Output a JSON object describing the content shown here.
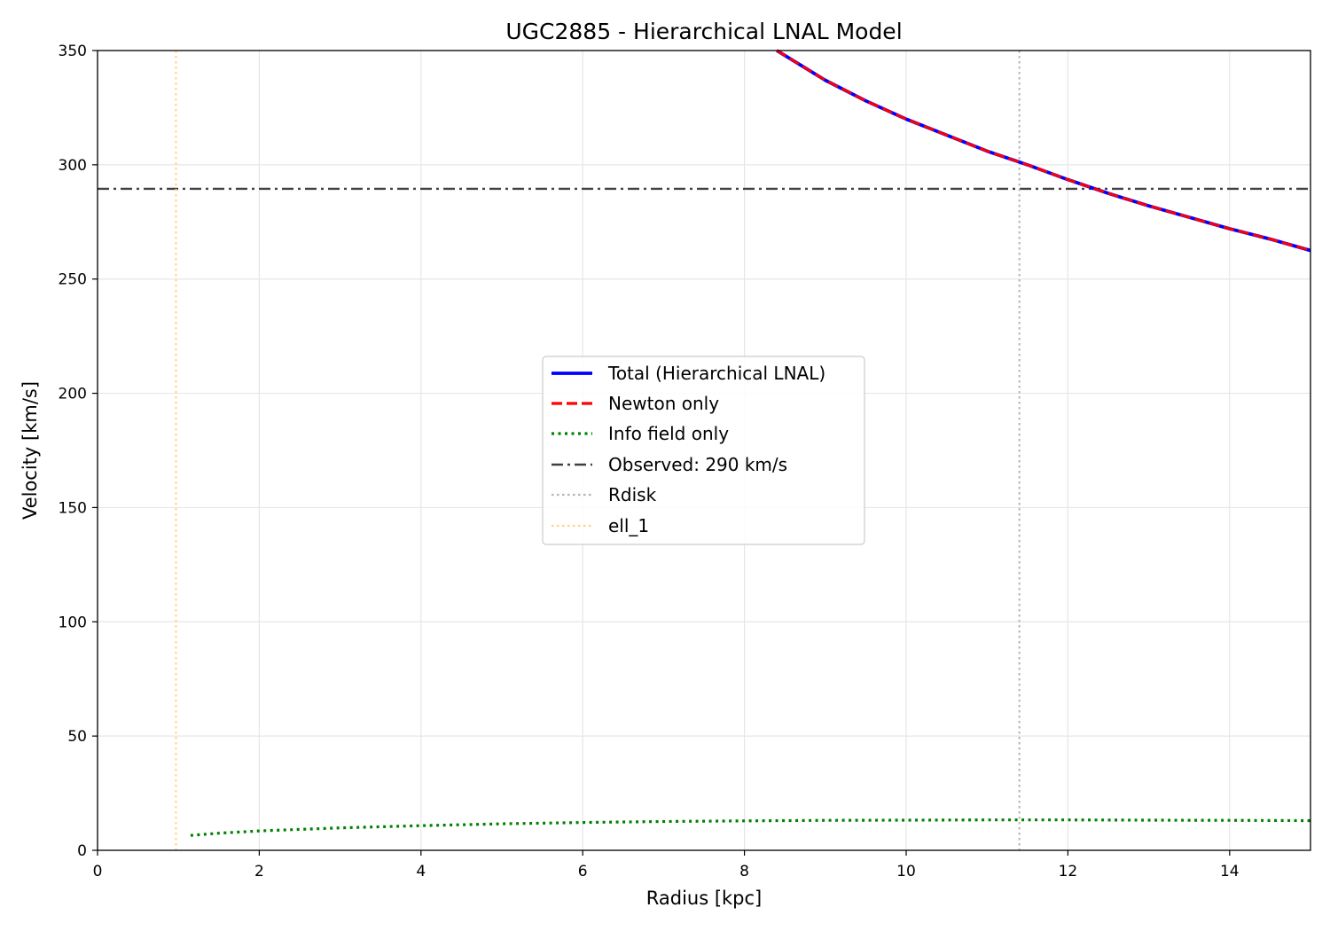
{
  "chart_data": {
    "type": "line",
    "title": "UGC2885 - Hierarchical LNAL Model",
    "xlabel": "Radius [kpc]",
    "ylabel": "Velocity [km/s]",
    "xlim": [
      0,
      15
    ],
    "ylim": [
      0,
      350
    ],
    "xticks": [
      0,
      2,
      4,
      6,
      8,
      10,
      12,
      14
    ],
    "xtick_labels": [
      "0",
      "2",
      "4",
      "6",
      "8",
      "10",
      "12",
      "14"
    ],
    "yticks": [
      0,
      50,
      100,
      150,
      200,
      250,
      300,
      350
    ],
    "ytick_labels": [
      "0",
      "50",
      "100",
      "150",
      "200",
      "250",
      "300",
      "350"
    ],
    "grid": true,
    "legend_position": "center",
    "series": [
      {
        "name": "Total (Hierarchical LNAL)",
        "style": "solid",
        "color": "#0000ff",
        "x": [
          8.4,
          9.0,
          9.5,
          10.0,
          10.5,
          11.0,
          11.5,
          12.0,
          12.5,
          13.0,
          13.5,
          14.0,
          14.5,
          15.0
        ],
        "y": [
          350,
          337,
          328,
          320,
          313,
          306,
          300,
          293.5,
          287.5,
          282,
          277,
          272,
          267.5,
          262.5
        ]
      },
      {
        "name": "Newton only",
        "style": "dashed",
        "color": "#ff0000",
        "x": [
          8.4,
          9.0,
          9.5,
          10.0,
          10.5,
          11.0,
          11.5,
          12.0,
          12.5,
          13.0,
          13.5,
          14.0,
          14.5,
          15.0
        ],
        "y": [
          350,
          337,
          328,
          320,
          313,
          306,
          300,
          293.5,
          287.5,
          282,
          277,
          272,
          267.5,
          262.5
        ]
      },
      {
        "name": "Info field only",
        "style": "dotted",
        "color": "#008000",
        "x": [
          1.15,
          1.5,
          2.0,
          3.0,
          4.0,
          5.0,
          6.0,
          7.0,
          8.0,
          9.0,
          10.0,
          11.0,
          12.0,
          13.0,
          14.0,
          15.0
        ],
        "y": [
          6.5,
          7.5,
          8.5,
          9.8,
          10.8,
          11.6,
          12.2,
          12.6,
          12.9,
          13.1,
          13.2,
          13.3,
          13.3,
          13.2,
          13.1,
          13.0
        ]
      }
    ],
    "reference_lines": [
      {
        "name": "Observed: 290 km/s",
        "orientation": "horizontal",
        "value": 289.5,
        "style": "dashdot",
        "color": "#404040"
      },
      {
        "name": "Rdisk",
        "orientation": "vertical",
        "value": 11.4,
        "style": "dotted",
        "color": "#b3b3b3"
      },
      {
        "name": "ell_1",
        "orientation": "vertical",
        "value": 0.97,
        "style": "dotted",
        "color": "#ffd47f"
      }
    ]
  }
}
